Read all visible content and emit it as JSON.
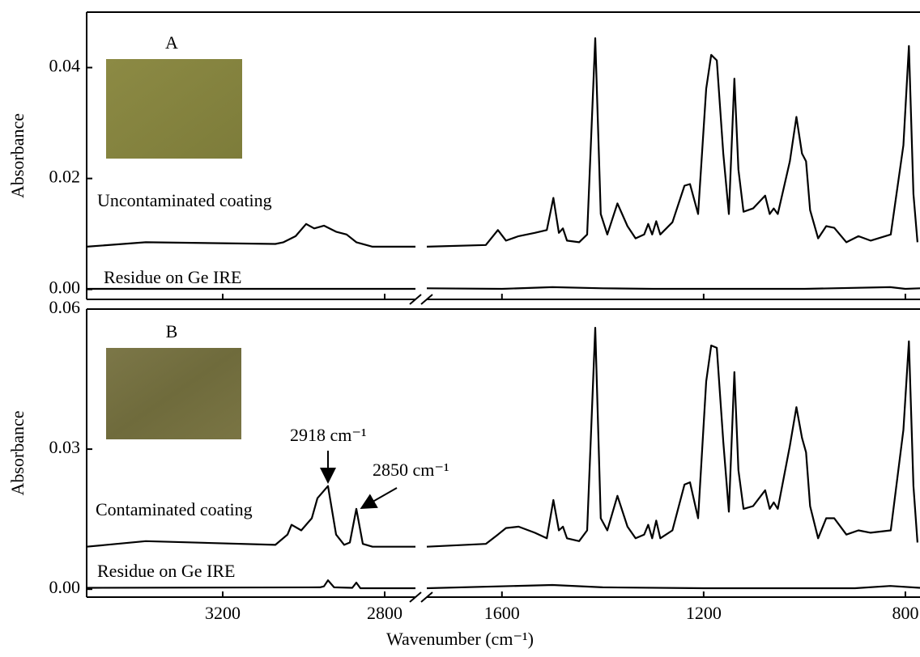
{
  "chart_data": [
    {
      "type": "line",
      "panel": "A",
      "ylabel": "Absorbance",
      "ylim": [
        -0.0018,
        0.05
      ],
      "yticks": [
        {
          "value": 0,
          "label": "0.00"
        },
        0.02,
        0.04
      ],
      "xlim": [
        3536,
        771
      ],
      "axis_break": [
        2724,
        1749
      ],
      "series": [
        {
          "name": "Uncontaminated coating",
          "color": "#000000",
          "x": [
            3536,
            3390,
            3070,
            3050,
            3020,
            2994,
            2974,
            2950,
            2920,
            2894,
            2870,
            2830,
            2724,
            1749,
            1632,
            1608,
            1592,
            1567,
            1535,
            1511,
            1498,
            1487,
            1479,
            1471,
            1447,
            1431,
            1415,
            1404,
            1391,
            1371,
            1351,
            1335,
            1318,
            1310,
            1302,
            1294,
            1286,
            1262,
            1238,
            1227,
            1211,
            1195,
            1185,
            1174,
            1161,
            1150,
            1139,
            1131,
            1121,
            1102,
            1078,
            1069,
            1061,
            1053,
            1029,
            1016,
            1005,
            997,
            989,
            973,
            957,
            941,
            917,
            893,
            869,
            829,
            804,
            793,
            784,
            776
          ],
          "values": [
            0.0077,
            0.0085,
            0.0082,
            0.0085,
            0.0096,
            0.0118,
            0.011,
            0.0115,
            0.0104,
            0.0099,
            0.0085,
            0.0077,
            0.0077,
            0.0077,
            0.008,
            0.0107,
            0.0088,
            0.0096,
            0.0102,
            0.0107,
            0.0165,
            0.0102,
            0.011,
            0.0088,
            0.0085,
            0.0099,
            0.0453,
            0.0136,
            0.0099,
            0.0155,
            0.0114,
            0.0092,
            0.0099,
            0.0118,
            0.0099,
            0.0123,
            0.0099,
            0.0121,
            0.0187,
            0.019,
            0.0136,
            0.0362,
            0.0423,
            0.0413,
            0.0245,
            0.0136,
            0.038,
            0.0216,
            0.014,
            0.0146,
            0.0169,
            0.0136,
            0.0146,
            0.0136,
            0.0231,
            0.0311,
            0.0245,
            0.0231,
            0.0143,
            0.0092,
            0.0114,
            0.0111,
            0.0085,
            0.0096,
            0.0088,
            0.0099,
            0.026,
            0.0439,
            0.0172,
            0.0085
          ]
        },
        {
          "name": "Residue on Ge IRE",
          "color": "#000000",
          "x": [
            3536,
            2724,
            1749,
            1600,
            1500,
            1400,
            1300,
            1000,
            830,
            800,
            771
          ],
          "values": [
            0.0001,
            0.0001,
            0.0002,
            0.0001,
            0.0004,
            0.0002,
            0.0001,
            0.0001,
            0.0004,
            0.0001,
            0.0002
          ]
        }
      ]
    },
    {
      "type": "line",
      "panel": "B",
      "ylabel": "Absorbance",
      "xlabel": "Wavenumber (cm⁻¹)",
      "ylim": [
        -0.0017,
        0.06
      ],
      "yticks": [
        {
          "value": 0,
          "label": "0.00"
        },
        0.03,
        0.06
      ],
      "xlim": [
        3536,
        771
      ],
      "axis_break": [
        2724,
        1749
      ],
      "xticks": [
        3200,
        2800,
        1600,
        1200,
        800
      ],
      "annotations": [
        "2918 cm⁻¹",
        "2850 cm⁻¹"
      ],
      "series": [
        {
          "name": "Contaminated coating",
          "color": "#000000",
          "x": [
            3536,
            3390,
            3070,
            3040,
            3030,
            3006,
            2980,
            2966,
            2940,
            2920,
            2900,
            2886,
            2870,
            2854,
            2830,
            2724,
            1749,
            1632,
            1608,
            1592,
            1567,
            1535,
            1511,
            1498,
            1487,
            1479,
            1471,
            1447,
            1431,
            1415,
            1404,
            1391,
            1371,
            1351,
            1335,
            1318,
            1310,
            1302,
            1294,
            1286,
            1262,
            1238,
            1227,
            1211,
            1195,
            1185,
            1174,
            1161,
            1150,
            1139,
            1131,
            1121,
            1102,
            1078,
            1069,
            1061,
            1053,
            1029,
            1016,
            1005,
            997,
            989,
            973,
            957,
            941,
            917,
            893,
            869,
            829,
            804,
            793,
            784,
            776
          ],
          "values": [
            0.0091,
            0.0103,
            0.0095,
            0.0117,
            0.0138,
            0.0126,
            0.0152,
            0.0195,
            0.0221,
            0.0117,
            0.0095,
            0.01,
            0.0172,
            0.0097,
            0.0091,
            0.0091,
            0.0091,
            0.0097,
            0.0117,
            0.0131,
            0.0134,
            0.0121,
            0.0109,
            0.0191,
            0.0126,
            0.0134,
            0.0109,
            0.0103,
            0.0126,
            0.056,
            0.0152,
            0.0126,
            0.02,
            0.0134,
            0.0109,
            0.0117,
            0.0138,
            0.0109,
            0.0147,
            0.0109,
            0.0126,
            0.0224,
            0.0229,
            0.0152,
            0.0445,
            0.0522,
            0.0517,
            0.0316,
            0.0166,
            0.0465,
            0.0255,
            0.0172,
            0.0178,
            0.0212,
            0.0172,
            0.0186,
            0.0172,
            0.0307,
            0.039,
            0.0324,
            0.0293,
            0.0178,
            0.0109,
            0.0152,
            0.0152,
            0.0117,
            0.0126,
            0.0121,
            0.0126,
            0.0341,
            0.0531,
            0.0221,
            0.01
          ]
        },
        {
          "name": "Residue on Ge IRE",
          "color": "#000000",
          "x": [
            3536,
            2960,
            2950,
            2940,
            2925,
            2880,
            2870,
            2860,
            2724,
            1749,
            1500,
            1400,
            1200,
            900,
            830,
            771
          ],
          "values": [
            0.0003,
            0.0004,
            0.0006,
            0.0019,
            0.0004,
            0.0003,
            0.0014,
            0.0002,
            0.0002,
            0.0002,
            0.0009,
            0.0004,
            0.0002,
            0.0002,
            0.0007,
            0.0003
          ]
        }
      ]
    }
  ]
}
